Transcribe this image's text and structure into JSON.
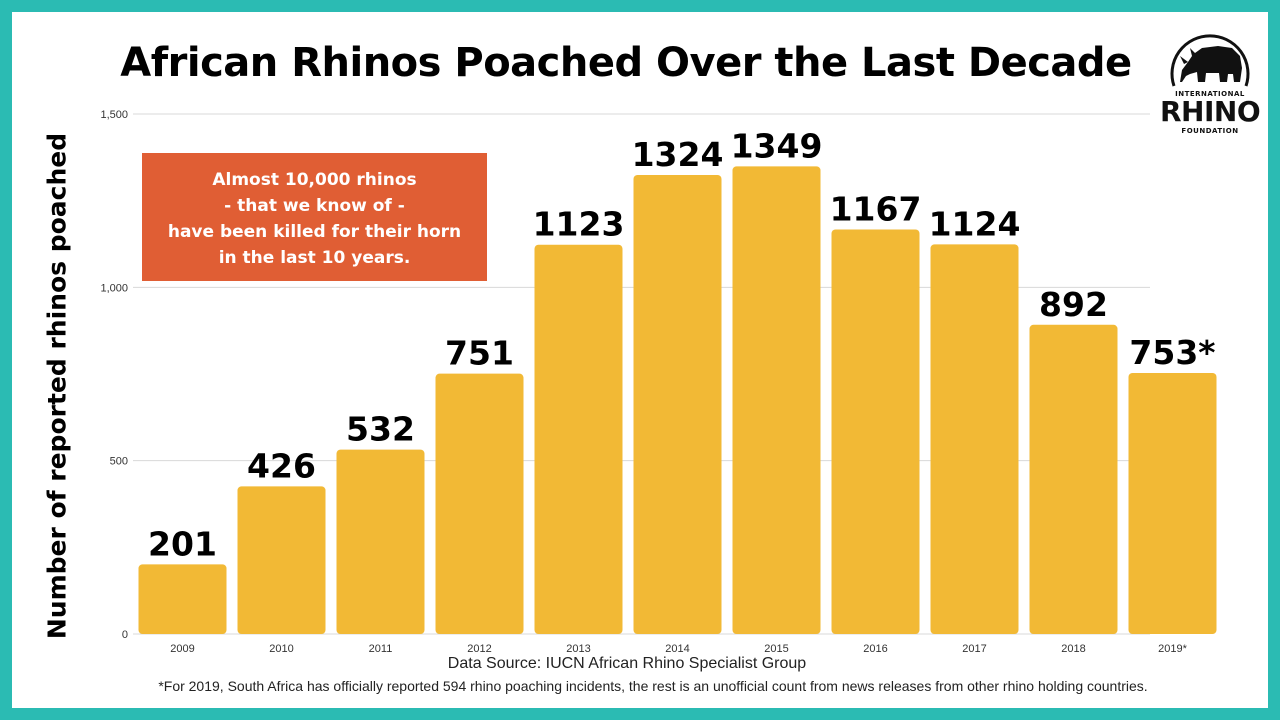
{
  "chart_data": {
    "type": "bar",
    "title": "African Rhinos Poached Over the Last Decade",
    "ylabel": "Number of reported rhinos poached",
    "xlabel": "",
    "categories": [
      "2009",
      "2010",
      "2011",
      "2012",
      "2013",
      "2014",
      "2015",
      "2016",
      "2017",
      "2018",
      "2019*"
    ],
    "values": [
      201,
      426,
      532,
      751,
      1123,
      1324,
      1349,
      1167,
      1124,
      892,
      753
    ],
    "data_labels": [
      "201",
      "426",
      "532",
      "751",
      "1123",
      "1324",
      "1349",
      "1167",
      "1124",
      "892",
      "753*"
    ],
    "ylim": [
      0,
      1500
    ],
    "yticks": [
      0,
      500,
      1000,
      1500
    ],
    "ytick_labels": [
      "0",
      "500",
      "1,000",
      "1,500"
    ],
    "grid": true,
    "bar_color": "#f2b935"
  },
  "callout": {
    "lines": [
      "Almost 10,000 rhinos",
      "- that we know of -",
      "have been killed for their horn",
      "in the last 10 years."
    ]
  },
  "source": "Data Source: IUCN African Rhino Specialist Group",
  "footnote": "*For 2019, South Africa has officially reported 594 rhino poaching incidents, the rest is an unofficial count from news releases from other rhino holding countries.",
  "logo": {
    "line_top": "INTERNATIONAL",
    "line_main": "RHINO",
    "line_bottom": "FOUNDATION",
    "icon": "rhino-icon"
  },
  "colors": {
    "frame": "#2bbbb3",
    "callout": "#e05e34",
    "bar": "#f2b935"
  }
}
